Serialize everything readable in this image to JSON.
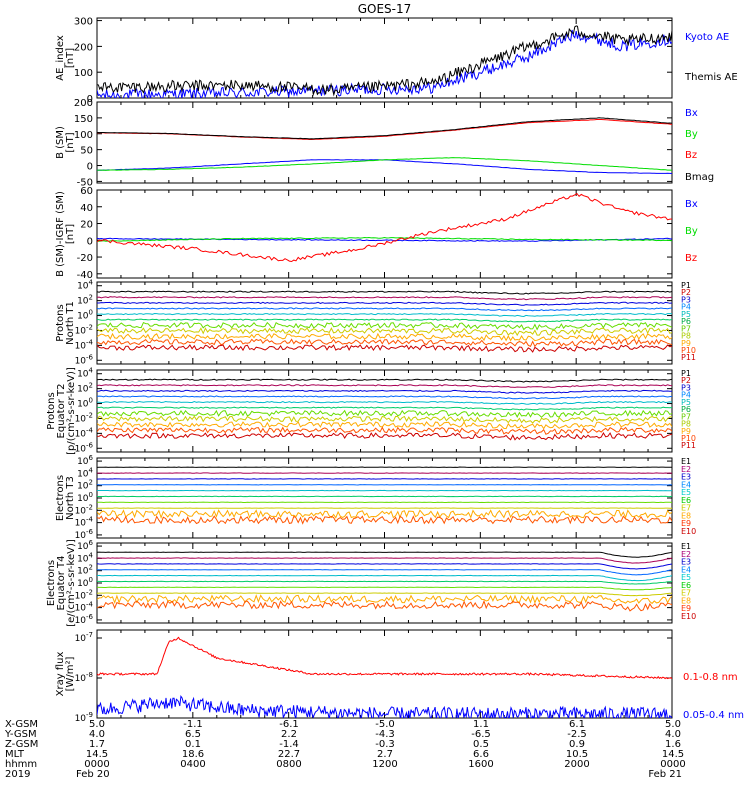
{
  "title": "GOES-17",
  "colors": {
    "black": "#000000",
    "blue": "#0000ff",
    "green": "#00dd00",
    "red": "#ff0000",
    "darkred": "#cc0000",
    "purple": "#8800cc",
    "teal": "#00aaaa",
    "cyan": "#00dddd",
    "lime": "#66ee00",
    "yellow": "#dddd00",
    "orange": "#ff9900",
    "brightred": "#ff2200"
  },
  "chart_data": [
    {
      "type": "line",
      "id": "ae",
      "ylabel": [
        "AE_index",
        "[nT]"
      ],
      "yticks": [
        0,
        100,
        200,
        300
      ],
      "ylim": [
        0,
        310
      ],
      "series": [
        {
          "name": "Kyoto AE",
          "color": "#0000ff",
          "x": [
            0,
            6,
            10,
            14,
            18,
            20,
            22,
            24
          ],
          "y": [
            10,
            20,
            30,
            40,
            160,
            250,
            200,
            230
          ]
        },
        {
          "name": "Themis AE",
          "color": "#000000",
          "x": [
            0,
            6,
            10,
            14,
            18,
            20,
            22,
            24
          ],
          "y": [
            40,
            50,
            30,
            60,
            200,
            260,
            220,
            240
          ]
        }
      ]
    },
    {
      "type": "line",
      "id": "bsm",
      "ylabel": [
        "B (SM)",
        "[nT]"
      ],
      "yticks": [
        -50,
        0,
        50,
        100,
        150,
        200
      ],
      "ylim": [
        -55,
        200
      ],
      "series": [
        {
          "name": "Bx",
          "color": "#0000ff",
          "x": [
            0,
            3,
            6,
            9,
            12,
            15,
            18,
            21,
            24
          ],
          "y": [
            -15,
            -8,
            5,
            18,
            18,
            5,
            -12,
            -22,
            -25
          ]
        },
        {
          "name": "By",
          "color": "#00dd00",
          "x": [
            0,
            3,
            6,
            9,
            12,
            15,
            18,
            21,
            24
          ],
          "y": [
            -15,
            -12,
            -5,
            5,
            18,
            25,
            15,
            0,
            -15
          ]
        },
        {
          "name": "Bz",
          "color": "#ff0000",
          "x": [
            0,
            3,
            6,
            9,
            12,
            15,
            18,
            21,
            24
          ],
          "y": [
            103,
            100,
            90,
            82,
            92,
            112,
            135,
            145,
            130
          ]
        },
        {
          "name": "Bmag",
          "color": "#000000",
          "x": [
            0,
            3,
            6,
            9,
            12,
            15,
            18,
            21,
            24
          ],
          "y": [
            104,
            101,
            91,
            84,
            94,
            114,
            138,
            150,
            133
          ]
        }
      ]
    },
    {
      "type": "line",
      "id": "bdiff",
      "ylabel": [
        "B (SM)-IGRF (SM)",
        "[nT]"
      ],
      "yticks": [
        -40,
        -20,
        0,
        20,
        40,
        60
      ],
      "ylim": [
        -45,
        60
      ],
      "series": [
        {
          "name": "Bx",
          "color": "#0000ff",
          "x": [
            0,
            6,
            12,
            18,
            24
          ],
          "y": [
            2,
            1,
            0,
            -1,
            2
          ]
        },
        {
          "name": "By",
          "color": "#00dd00",
          "x": [
            0,
            6,
            12,
            18,
            24
          ],
          "y": [
            -1,
            2,
            3,
            1,
            0
          ]
        },
        {
          "name": "Bz",
          "color": "#ff0000",
          "x": [
            0,
            4,
            8,
            11,
            14,
            17,
            19,
            20,
            22,
            24
          ],
          "y": [
            0,
            -10,
            -24,
            -10,
            10,
            25,
            45,
            55,
            35,
            25
          ]
        }
      ]
    },
    {
      "type": "line",
      "id": "p_north",
      "ylabel": [
        "Protons",
        "North T1"
      ],
      "log": true,
      "yticks_exp": [
        -6,
        -4,
        -2,
        0,
        2,
        4
      ],
      "ylim_exp": [
        -6.5,
        4.5
      ],
      "legend": [
        "P1",
        "P2",
        "P3",
        "P4",
        "P5",
        "P6",
        "P7",
        "P8",
        "P9",
        "P10",
        "P11"
      ]
    },
    {
      "type": "line",
      "id": "p_equator",
      "ylabel": [
        "Protons",
        "Equator T2",
        "[p/(cm²-s-sr-keV)]"
      ],
      "log": true,
      "yticks_exp": [
        -6,
        -4,
        -2,
        0,
        2,
        4
      ],
      "ylim_exp": [
        -6.5,
        4.5
      ],
      "legend": [
        "P1",
        "P2",
        "P3",
        "P4",
        "P5",
        "P6",
        "P7",
        "P8",
        "P9",
        "P10",
        "P11"
      ]
    },
    {
      "type": "line",
      "id": "e_north",
      "ylabel": [
        "Electrons",
        "North T3"
      ],
      "log": true,
      "yticks_exp": [
        -6,
        -4,
        -2,
        0,
        2,
        4,
        6
      ],
      "ylim_exp": [
        -6.5,
        6.5
      ],
      "legend": [
        "E1",
        "E2",
        "E3",
        "E4",
        "E5",
        "E6",
        "E7",
        "E8",
        "E9",
        "E10"
      ]
    },
    {
      "type": "line",
      "id": "e_equator",
      "ylabel": [
        "Electrons",
        "Equator T4",
        "[e/(cm²-s-sr-keV)]"
      ],
      "log": true,
      "yticks_exp": [
        -6,
        -4,
        -2,
        0,
        2,
        4,
        6
      ],
      "ylim_exp": [
        -6.5,
        6.5
      ],
      "legend": [
        "E1",
        "E2",
        "E3",
        "E4",
        "E5",
        "E6",
        "E7",
        "E8",
        "E9",
        "E10"
      ]
    },
    {
      "type": "line",
      "id": "xray",
      "ylabel": [
        "Xray flux",
        "[W/m²]"
      ],
      "log": true,
      "yticks_exp": [
        -9,
        -8,
        -7
      ],
      "ylim_exp": [
        -9,
        -6.8
      ],
      "series": [
        {
          "name": "0.1-0.8 nm",
          "color": "#ff0000",
          "x": [
            0,
            2.5,
            3,
            3.4,
            5,
            8,
            9,
            12,
            18,
            24
          ],
          "y_exp": [
            -7.9,
            -7.9,
            -7.1,
            -7.0,
            -7.5,
            -7.8,
            -7.9,
            -7.9,
            -7.9,
            -8.0
          ]
        },
        {
          "name": "0.05-0.4 nm",
          "color": "#0000ff",
          "x": [
            0,
            3,
            6,
            12,
            18,
            24
          ],
          "y_exp": [
            -8.8,
            -8.6,
            -8.8,
            -8.9,
            -8.9,
            -8.9
          ]
        }
      ]
    }
  ],
  "footer": {
    "row_labels": [
      "X-GSM",
      "Y-GSM",
      "Z-GSM",
      "MLT",
      "hhmm",
      "2019"
    ],
    "columns": [
      {
        "values": [
          "5.0",
          "4.0",
          "1.7",
          "14.5",
          "0000",
          "Feb 20"
        ]
      },
      {
        "values": [
          "-1.1",
          "6.5",
          "0.1",
          "18.6",
          "0400",
          ""
        ]
      },
      {
        "values": [
          "-6.1",
          "2.2",
          "-1.4",
          "22.7",
          "0800",
          ""
        ]
      },
      {
        "values": [
          "-5.0",
          "-4.3",
          "-0.3",
          "2.7",
          "1200",
          ""
        ]
      },
      {
        "values": [
          "1.1",
          "-6.5",
          "0.5",
          "6.6",
          "1600",
          ""
        ]
      },
      {
        "values": [
          "6.1",
          "-2.5",
          "0.9",
          "10.5",
          "2000",
          ""
        ]
      },
      {
        "values": [
          "5.0",
          "4.0",
          "1.6",
          "14.5",
          "0000",
          "Feb 21"
        ]
      }
    ]
  }
}
